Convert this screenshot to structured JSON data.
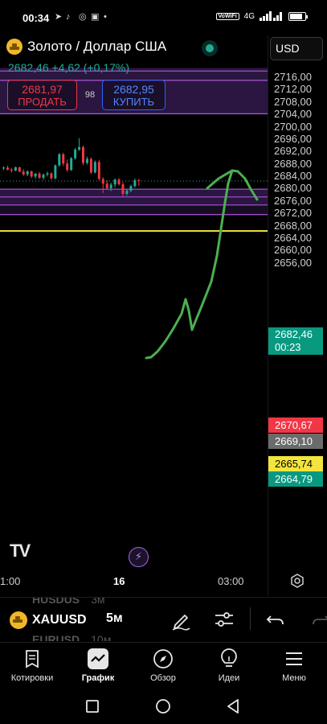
{
  "status": {
    "time": "00:34",
    "vowifi": "VoWiFi",
    "network": "4G",
    "battery_level": 0.85
  },
  "header": {
    "symbol_name": "Золото / Доллар США",
    "price_line": "2682,46 +4,62 (+0,17%)",
    "sell_price": "2681,97",
    "sell_label": "ПРОДАТЬ",
    "spread": "98",
    "buy_price": "2682,95",
    "buy_label": "КУПИТЬ",
    "currency": "USD"
  },
  "axis": {
    "price_labels": [
      "2716,00",
      "2712,00",
      "2708,00",
      "2704,00",
      "2700,00",
      "2696,00",
      "2692,00",
      "2688,00",
      "2684,00",
      "2680,00",
      "2676,00",
      "2672,00",
      "2668,00",
      "2664,00",
      "2660,00",
      "2656,00"
    ],
    "current_price": "2682,46",
    "countdown": "00:23",
    "tags": [
      "2670,67",
      "2669,10",
      "2665,74",
      "2664,79"
    ],
    "time_labels": [
      "1:00",
      "16",
      "03:00"
    ]
  },
  "chart_data": {
    "type": "candlestick",
    "zones": [
      {
        "from": 2704,
        "to": 2719,
        "color": "#2a1640"
      },
      {
        "from": 2674.7,
        "to": 2680,
        "color": "#2a1640"
      },
      {
        "from": 2671.5,
        "to": 2674.7,
        "color": "#160d22"
      }
    ],
    "zone_lines": [
      2718,
      2715,
      2704.2,
      2679.8,
      2677.3,
      2674.7,
      2671.6
    ],
    "hlines": [
      {
        "value": 2666.3,
        "color": "#f4e53d"
      }
    ],
    "current_price": 2682.46,
    "colors": {
      "up": "#22ab94",
      "down": "#f23645",
      "zone_line": "#a855d8",
      "forecast": "#4caf50"
    },
    "candles": [
      [
        2686.5,
        2687.2,
        2686.0,
        2686.8
      ],
      [
        2686.8,
        2687.4,
        2685.9,
        2686.1
      ],
      [
        2686.1,
        2686.7,
        2685.2,
        2685.8
      ],
      [
        2685.8,
        2687.1,
        2685.6,
        2686.9
      ],
      [
        2686.9,
        2687.0,
        2685.3,
        2685.5
      ],
      [
        2685.5,
        2686.3,
        2684.1,
        2684.6
      ],
      [
        2684.6,
        2685.9,
        2684.0,
        2685.6
      ],
      [
        2685.6,
        2685.8,
        2683.4,
        2683.9
      ],
      [
        2683.9,
        2685.1,
        2683.2,
        2684.8
      ],
      [
        2684.8,
        2685.4,
        2683.1,
        2683.5
      ],
      [
        2683.5,
        2684.9,
        2682.8,
        2684.5
      ],
      [
        2684.5,
        2685.5,
        2683.9,
        2684.9
      ],
      [
        2684.9,
        2685.3,
        2682.9,
        2683.3
      ],
      [
        2683.3,
        2687.8,
        2683.0,
        2687.5
      ],
      [
        2687.5,
        2691.5,
        2687.1,
        2691.1
      ],
      [
        2691.1,
        2691.6,
        2687.3,
        2688.1
      ],
      [
        2688.1,
        2689.4,
        2685.4,
        2686.0
      ],
      [
        2686.0,
        2690.2,
        2685.7,
        2689.8
      ],
      [
        2689.8,
        2693.1,
        2689.3,
        2692.6
      ],
      [
        2692.6,
        2696.3,
        2692.2,
        2693.4
      ],
      [
        2693.4,
        2693.9,
        2687.6,
        2688.3
      ],
      [
        2688.3,
        2690.3,
        2687.8,
        2689.6
      ],
      [
        2689.6,
        2690.1,
        2684.7,
        2685.2
      ],
      [
        2685.2,
        2689.1,
        2684.9,
        2688.6
      ],
      [
        2688.6,
        2689.3,
        2682.6,
        2683.1
      ],
      [
        2683.1,
        2683.7,
        2678.6,
        2681.6
      ],
      [
        2681.6,
        2682.7,
        2679.6,
        2680.1
      ],
      [
        2680.1,
        2681.9,
        2679.2,
        2681.3
      ],
      [
        2681.3,
        2683.3,
        2680.3,
        2682.9
      ],
      [
        2682.9,
        2683.4,
        2680.9,
        2681.4
      ],
      [
        2681.4,
        2682.1,
        2677.4,
        2678.3
      ],
      [
        2678.3,
        2679.9,
        2677.7,
        2679.3
      ],
      [
        2679.3,
        2681.3,
        2678.8,
        2680.8
      ],
      [
        2680.8,
        2683.3,
        2680.3,
        2682.7
      ],
      [
        2682.7,
        2683.1,
        2680.9,
        2682.46
      ]
    ]
  },
  "toolbar": {
    "symbol": "XAUUSD",
    "interval": "5м",
    "ghost_above": {
      "symbol": "HUSDUS",
      "interval": "3м"
    },
    "ghost_below": {
      "symbol": "EURUSD",
      "interval": "10м"
    }
  },
  "nav": {
    "quotes": "Котировки",
    "chart": "График",
    "overview": "Обзор",
    "ideas": "Идеи",
    "menu": "Меню"
  }
}
